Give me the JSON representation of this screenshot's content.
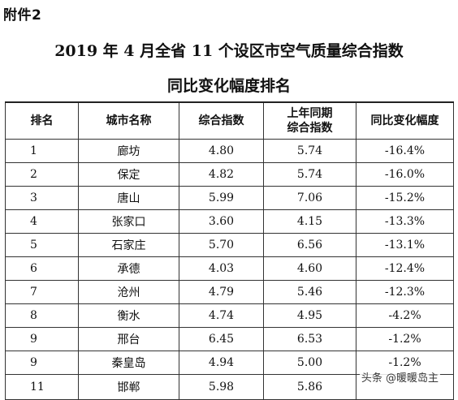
{
  "attachment_label": "附件2",
  "title_line1": "2019 年 4 月全省 11 个设区市空气质量综合指数",
  "title_line2": "同比变化幅度排名",
  "table": {
    "headers": [
      "排名",
      "城市名称",
      "综合指数",
      "上年同期",
      "综合指数",
      "同比变化幅度"
    ],
    "rows": [
      [
        "1",
        "廊坊",
        "4.80",
        "5.74",
        "-16.4%"
      ],
      [
        "2",
        "保定",
        "4.82",
        "5.74",
        "-16.0%"
      ],
      [
        "3",
        "唐山",
        "5.99",
        "7.06",
        "-15.2%"
      ],
      [
        "4",
        "张家口",
        "3.60",
        "4.15",
        "-13.3%"
      ],
      [
        "5",
        "石家庄",
        "5.70",
        "6.56",
        "-13.1%"
      ],
      [
        "6",
        "承德",
        "4.03",
        "4.60",
        "-12.4%"
      ],
      [
        "7",
        "沧州",
        "4.79",
        "5.46",
        "-12.3%"
      ],
      [
        "8",
        "衡水",
        "4.74",
        "4.95",
        "-4.2%"
      ],
      [
        "9",
        "邢台",
        "6.45",
        "6.53",
        "-1.2%"
      ],
      [
        "9",
        "秦皇岛",
        "4.94",
        "5.00",
        "-1.2%"
      ],
      [
        "11",
        "邯郸",
        "5.98",
        "5.86",
        ""
      ]
    ]
  },
  "watermark": "头条 @暖暖岛主"
}
